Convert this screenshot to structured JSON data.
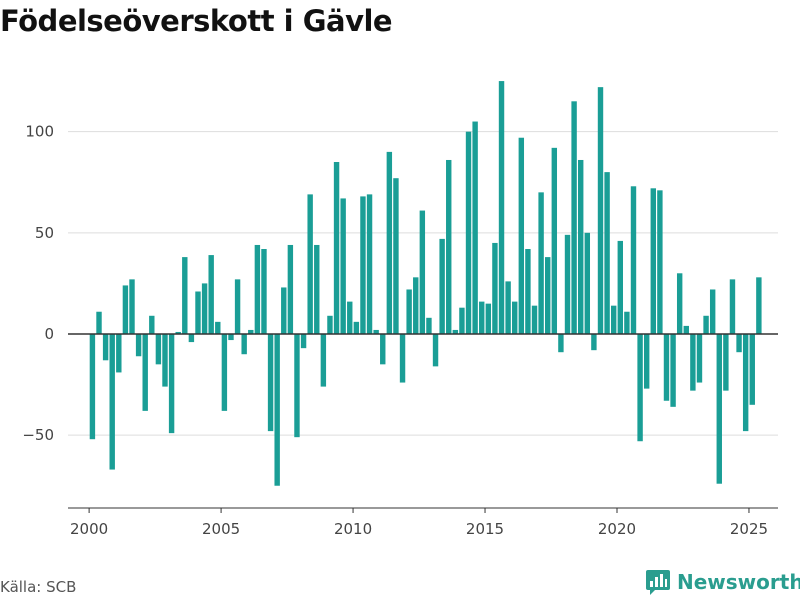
{
  "title": "Födelseöverskott i Gävle",
  "source": "Källa: SCB",
  "brand": "Newsworthy",
  "colors": {
    "bar": "#1a9e96",
    "grid": "#dddddd",
    "zero": "#333333",
    "brand": "#2a9d8f"
  },
  "chart_data": {
    "type": "bar",
    "title": "Födelseöverskott i Gävle",
    "xlabel": "",
    "ylabel": "",
    "xlim": [
      1999.2,
      2026.1
    ],
    "ylim": [
      -86,
      128
    ],
    "yticks": [
      -50,
      0,
      50,
      100
    ],
    "xticks": [
      2000,
      2005,
      2010,
      2015,
      2020,
      2025
    ],
    "grid": true,
    "frequency": "quarterly",
    "start_period": "2000 Q1",
    "values": [
      -52,
      11,
      -13,
      -67,
      -19,
      24,
      27,
      -11,
      -38,
      9,
      -15,
      -26,
      -49,
      1,
      38,
      -4,
      21,
      25,
      39,
      6,
      -38,
      -3,
      27,
      -10,
      2,
      44,
      42,
      -48,
      -75,
      23,
      44,
      -51,
      -7,
      69,
      44,
      -26,
      9,
      85,
      67,
      16,
      6,
      68,
      69,
      2,
      -15,
      90,
      77,
      -24,
      22,
      28,
      61,
      8,
      -16,
      47,
      86,
      2,
      13,
      100,
      105,
      16,
      15,
      45,
      125,
      26,
      16,
      97,
      42,
      14,
      70,
      38,
      92,
      -9,
      49,
      115,
      86,
      50,
      -8,
      122,
      80,
      14,
      46,
      11,
      73,
      -53,
      -27,
      72,
      71,
      -33,
      -36,
      30,
      4,
      -28,
      -24,
      9,
      22,
      -74,
      -28,
      27,
      -9,
      -48,
      -35,
      28
    ]
  }
}
